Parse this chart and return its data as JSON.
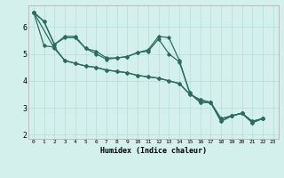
{
  "xlabel": "Humidex (Indice chaleur)",
  "bg_color": "#d4f0ec",
  "line_color": "#2e6b5e",
  "grid_color": "#b8ddd8",
  "xlim": [
    -0.5,
    23.5
  ],
  "ylim": [
    1.85,
    6.8
  ],
  "yticks": [
    2,
    3,
    4,
    5,
    6
  ],
  "xticks": [
    0,
    1,
    2,
    3,
    4,
    5,
    6,
    7,
    8,
    9,
    10,
    11,
    12,
    13,
    14,
    15,
    16,
    17,
    18,
    19,
    20,
    21,
    22,
    23
  ],
  "line1_x": [
    0,
    1,
    2,
    3,
    4,
    5,
    6,
    7,
    8,
    9,
    10,
    11,
    12,
    13,
    14,
    15,
    16,
    17,
    18,
    19,
    20,
    21,
    22
  ],
  "line1_y": [
    6.55,
    6.2,
    5.35,
    5.65,
    5.65,
    5.2,
    5.1,
    4.85,
    4.85,
    4.9,
    5.05,
    5.15,
    5.65,
    5.6,
    4.75,
    3.55,
    3.2,
    3.2,
    2.5,
    2.7,
    2.8,
    2.45,
    2.6
  ],
  "line2_x": [
    0,
    1,
    2,
    3,
    4,
    5,
    6,
    7,
    8,
    9,
    10,
    11,
    12,
    13,
    14,
    15,
    16,
    17,
    18,
    19,
    20,
    21,
    22
  ],
  "line2_y": [
    6.55,
    6.2,
    5.35,
    5.6,
    5.6,
    5.2,
    5.0,
    4.8,
    4.85,
    4.9,
    5.05,
    5.1,
    5.55,
    5.0,
    4.7,
    3.55,
    3.2,
    3.2,
    2.5,
    2.7,
    2.8,
    2.45,
    2.6
  ],
  "line3_x": [
    0,
    1,
    2,
    3,
    4,
    5,
    6,
    7,
    8,
    9,
    10,
    11,
    12,
    13,
    14,
    15,
    16,
    17,
    18,
    19,
    20,
    21,
    22
  ],
  "line3_y": [
    6.55,
    5.3,
    5.25,
    4.75,
    4.65,
    4.55,
    4.5,
    4.4,
    4.35,
    4.3,
    4.2,
    4.15,
    4.1,
    4.0,
    3.9,
    3.5,
    3.3,
    3.2,
    2.6,
    2.7,
    2.8,
    2.5,
    2.6
  ],
  "line4_x": [
    0,
    2,
    3,
    4,
    5,
    6,
    7,
    8,
    9,
    10,
    11,
    12,
    13,
    14,
    15,
    16,
    17,
    18,
    19,
    20,
    21,
    22
  ],
  "line4_y": [
    6.55,
    5.2,
    4.75,
    4.65,
    4.55,
    4.5,
    4.4,
    4.35,
    4.3,
    4.2,
    4.15,
    4.1,
    4.0,
    3.9,
    3.5,
    3.3,
    3.2,
    2.6,
    2.7,
    2.8,
    2.5,
    2.6
  ]
}
